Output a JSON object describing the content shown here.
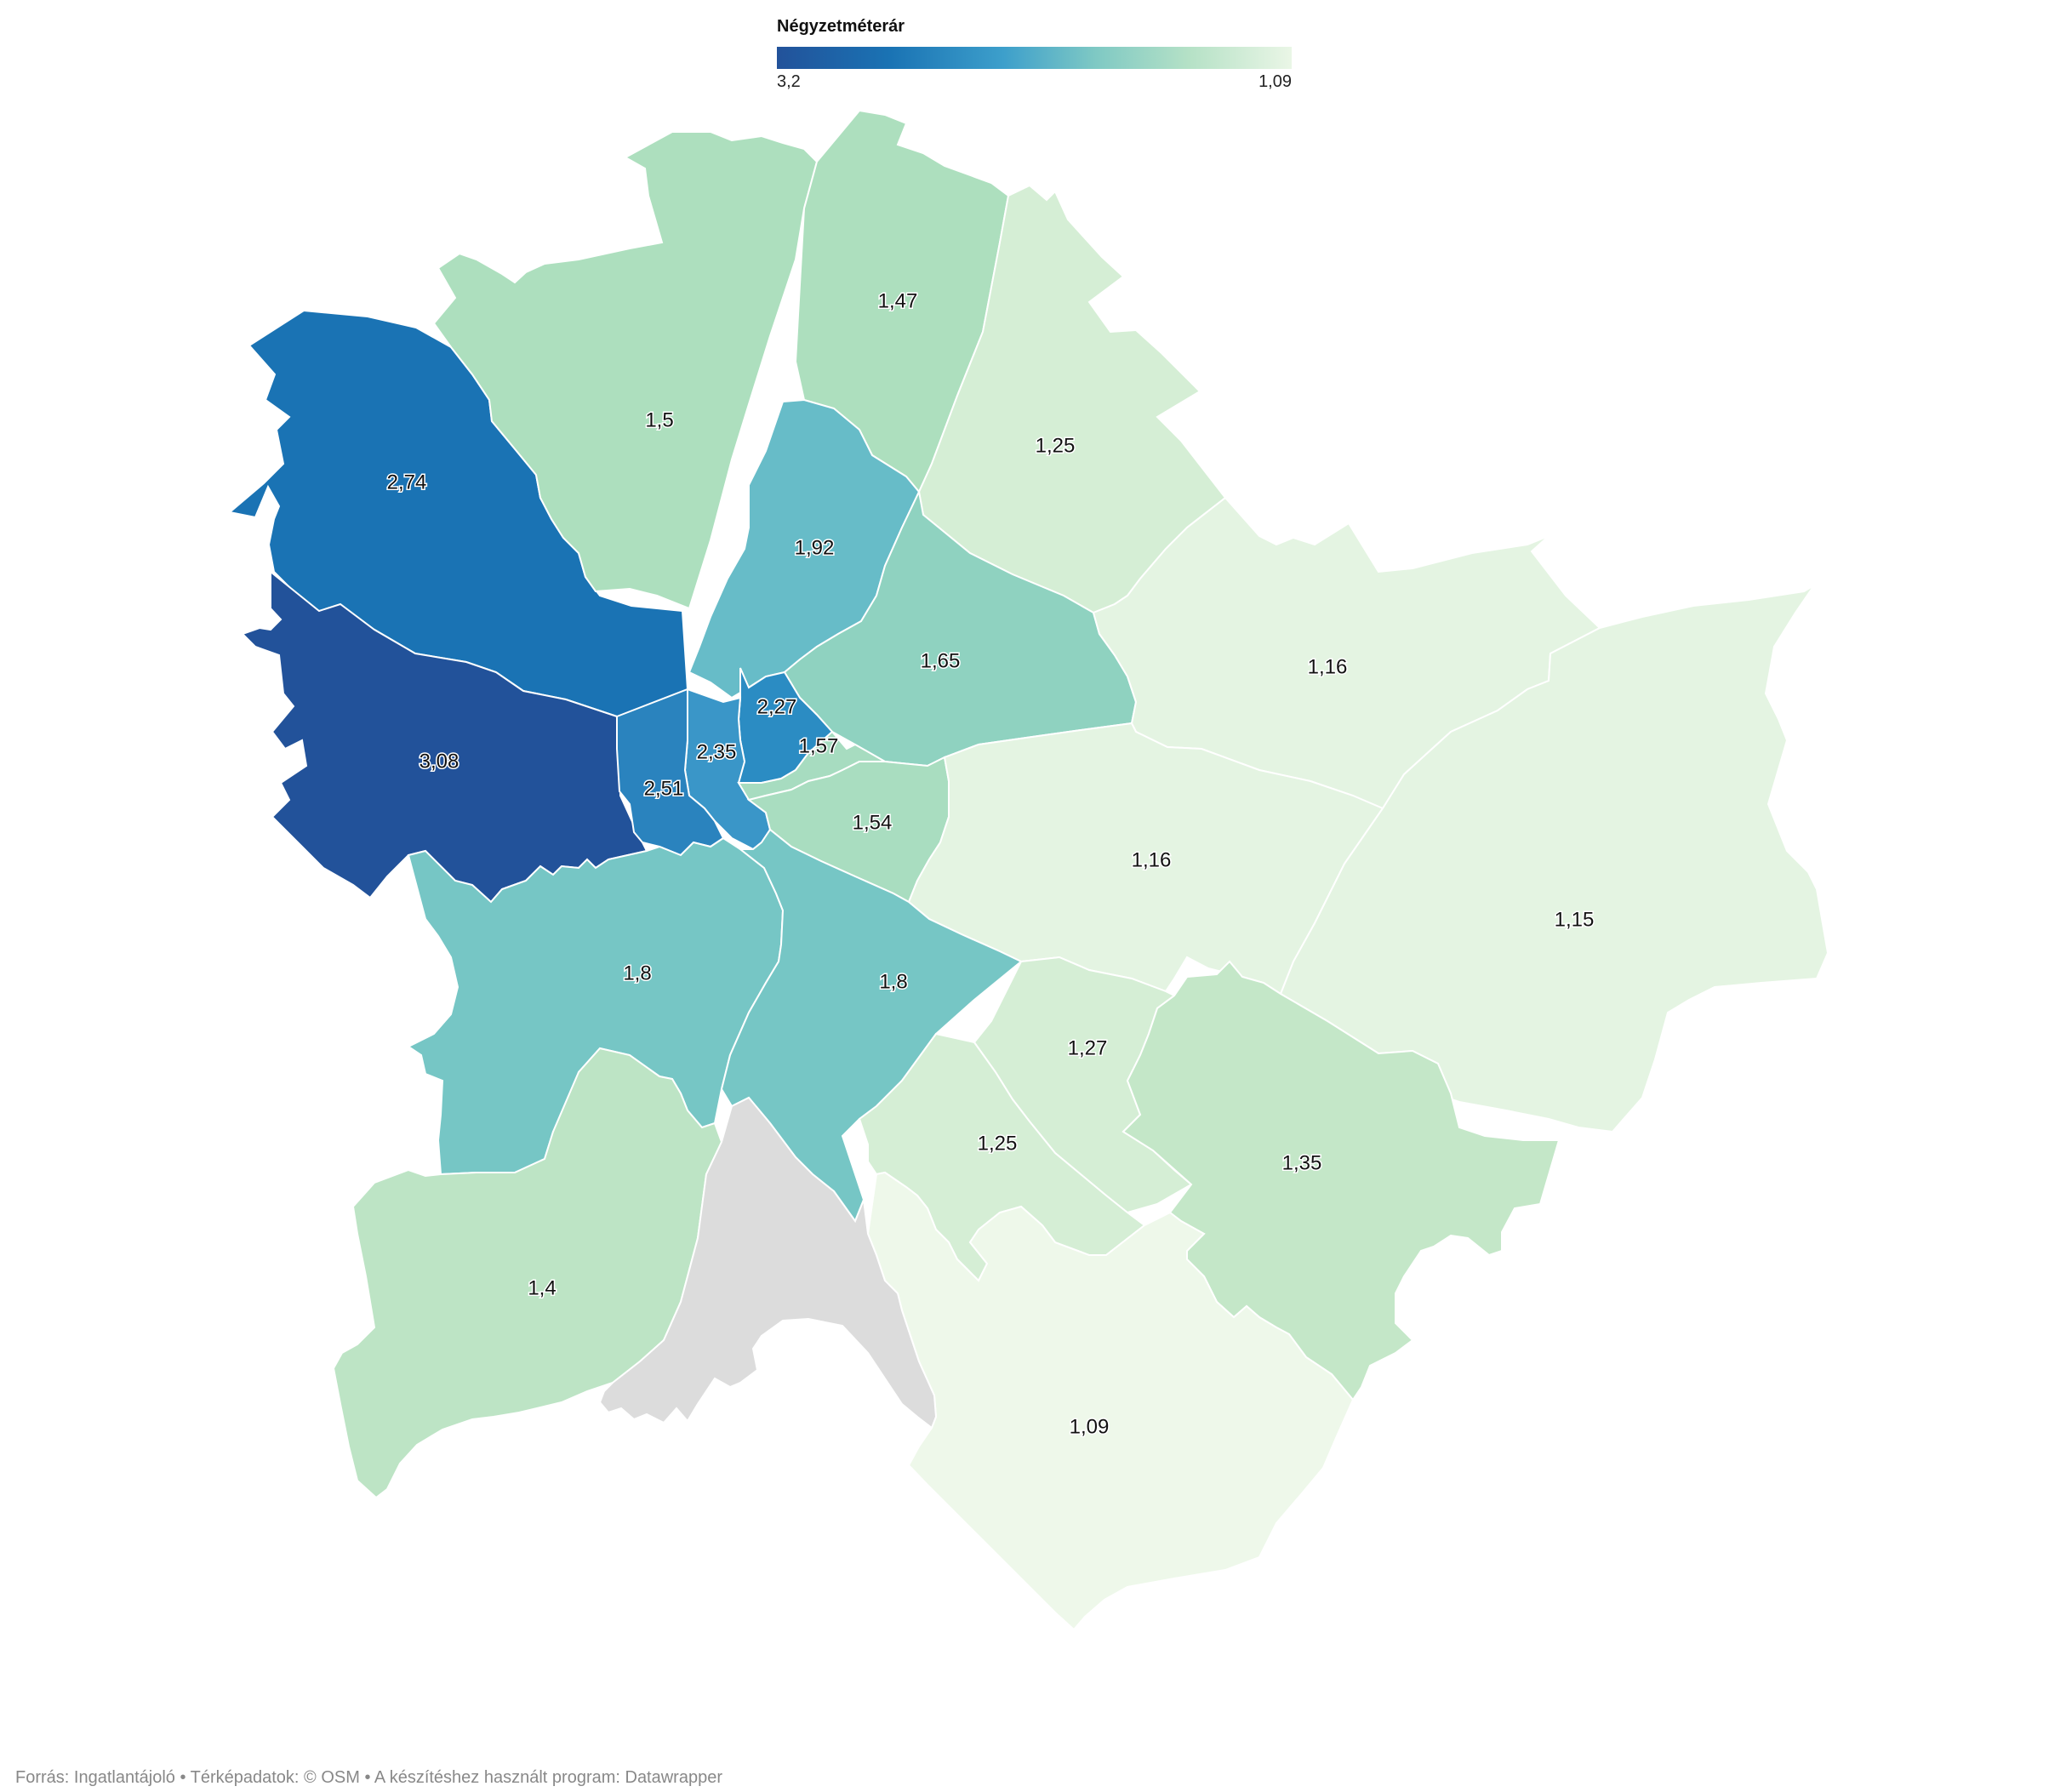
{
  "legend": {
    "title": "Négyzetméterár",
    "min_label": "3,2",
    "max_label": "1,09",
    "colors": [
      "#22529a",
      "#1a73b4",
      "#3d9fcb",
      "#7fc9c4",
      "#b5e1c6",
      "#eaf6e6"
    ]
  },
  "districts": [
    {
      "id": "d2",
      "value": "2,74",
      "color": "#1a73b4"
    },
    {
      "id": "d12",
      "value": "3,08",
      "color": "#22529a"
    },
    {
      "id": "d3",
      "value": "1,5",
      "color": "#addfbe"
    },
    {
      "id": "d4",
      "value": "1,47",
      "color": "#addfbe"
    },
    {
      "id": "d15",
      "value": "1,25",
      "color": "#d5eed5"
    },
    {
      "id": "d13",
      "value": "1,92",
      "color": "#67bcc8"
    },
    {
      "id": "d14",
      "value": "1,65",
      "color": "#8fd2c0"
    },
    {
      "id": "d16",
      "value": "1,16",
      "color": "#e4f4e2"
    },
    {
      "id": "d6",
      "value": "2,27",
      "color": "#2b8cc3"
    },
    {
      "id": "d5",
      "value": "2,35",
      "color": "#3a96c8"
    },
    {
      "id": "d1",
      "value": "2,51",
      "color": "#2a83be"
    },
    {
      "id": "d7",
      "value": "1,57",
      "color": "#a7dcc0"
    },
    {
      "id": "d8",
      "value": "1,54",
      "color": "#a9ddc0"
    },
    {
      "id": "d10",
      "value": "1,16",
      "color": "#e4f4e2"
    },
    {
      "id": "d17",
      "value": "1,15",
      "color": "#e4f4e2"
    },
    {
      "id": "d11",
      "value": "1,8",
      "color": "#76c6c5"
    },
    {
      "id": "d9",
      "value": "1,8",
      "color": "#76c6c5"
    },
    {
      "id": "d19",
      "value": "1,27",
      "color": "#d5eed5"
    },
    {
      "id": "d18",
      "value": "1,35",
      "color": "#c4e7c8"
    },
    {
      "id": "d20",
      "value": "1,25",
      "color": "#d5eed5"
    },
    {
      "id": "d22",
      "value": "1,4",
      "color": "#bde4c5"
    },
    {
      "id": "d23",
      "value": "1,09",
      "color": "#eef8ea"
    },
    {
      "id": "d21",
      "value": "",
      "color": "#dcdcdc"
    }
  ],
  "credit": "Forrás: Ingatlantájoló • Térképadatok: © OSM  • A készítéshez használt program: Datawrapper"
}
